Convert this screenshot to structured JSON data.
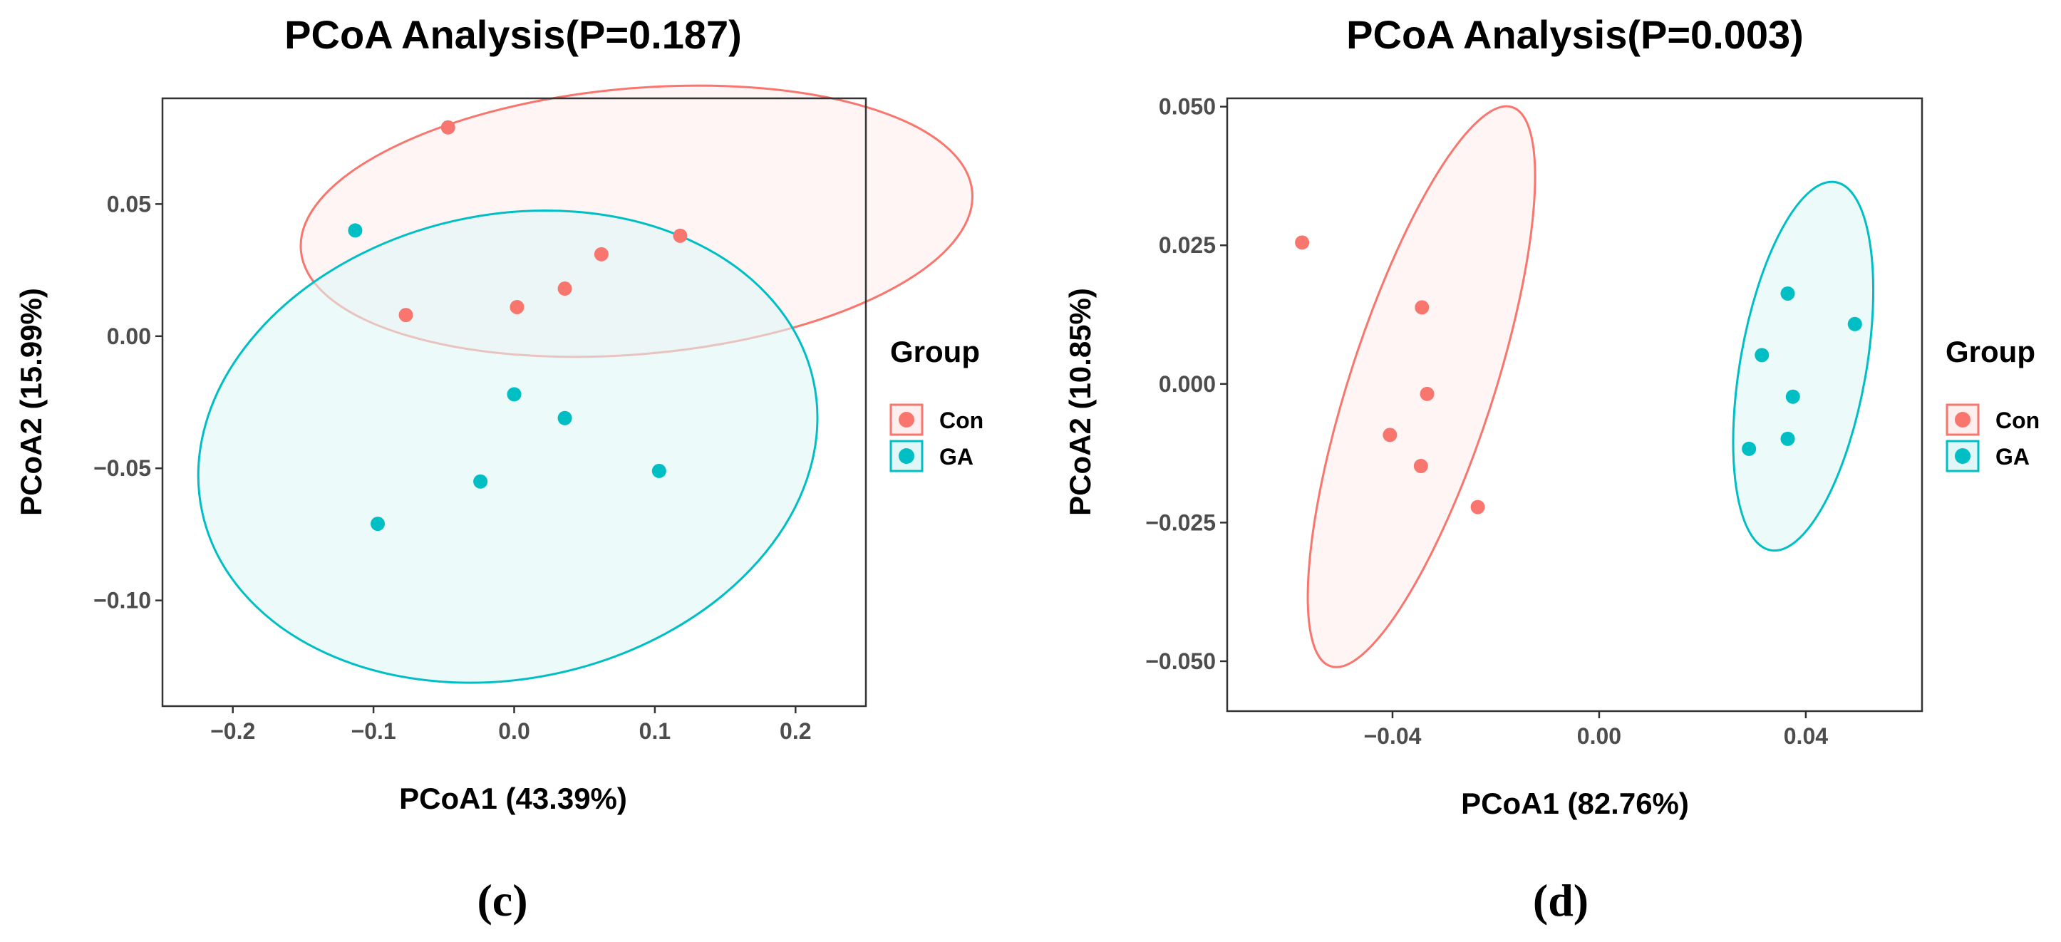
{
  "chart_data": [
    {
      "type": "scatter",
      "title": "PCoA Analysis(P=0.187)",
      "xlabel": "PCoA1 (43.39%)",
      "ylabel": "PCoA2 (15.99%)",
      "xlim": [
        -0.25,
        0.25
      ],
      "ylim": [
        -0.14,
        0.09
      ],
      "xticks": [
        -0.2,
        -0.1,
        0.0,
        0.1,
        0.2
      ],
      "xtick_labels": [
        "−0.2",
        "−0.1",
        "0.0",
        "0.1",
        "0.2"
      ],
      "yticks": [
        0.05,
        0.0,
        -0.05,
        -0.1
      ],
      "ytick_labels": [
        "0.05",
        "0.00",
        "−0.05",
        "−0.10"
      ],
      "grid": false,
      "legend": {
        "title": "Group",
        "placement": "right",
        "entries": [
          "Con",
          "GA"
        ]
      },
      "panel_label": "(c)",
      "series": [
        {
          "name": "Con",
          "color": "#F8766D",
          "x": [
            -0.047,
            0.118,
            0.062,
            -0.077,
            0.002,
            0.036
          ],
          "y": [
            0.079,
            0.038,
            0.031,
            0.008,
            0.011,
            0.018
          ],
          "ellipse": {
            "cx": 0.087,
            "cy": 0.0435,
            "rx": 0.2395,
            "ry": 0.0503,
            "angle_deg": -5
          }
        },
        {
          "name": "GA",
          "color": "#00BFC4",
          "x": [
            -0.113,
            0.0,
            0.036,
            0.103,
            -0.024,
            -0.097
          ],
          "y": [
            0.04,
            -0.022,
            -0.031,
            -0.051,
            -0.055,
            -0.071
          ],
          "ellipse": {
            "cx": -0.0045,
            "cy": -0.0418,
            "rx": 0.2222,
            "ry": 0.0878,
            "angle_deg": -12
          }
        }
      ]
    },
    {
      "type": "scatter",
      "title": "PCoA Analysis(P=0.003)",
      "xlabel": "PCoA1 (82.76%)",
      "ylabel": "PCoA2 (10.85%)",
      "xlim": [
        -0.072,
        0.0625
      ],
      "ylim": [
        -0.059,
        0.0515
      ],
      "xticks": [
        -0.04,
        0.0,
        0.04
      ],
      "xtick_labels": [
        "−0.04",
        "0.00",
        "0.04"
      ],
      "yticks": [
        0.05,
        0.025,
        0.0,
        -0.025,
        -0.05
      ],
      "ytick_labels": [
        "0.050",
        "0.025",
        "0.000",
        "−0.025",
        "−0.050"
      ],
      "grid": false,
      "legend": {
        "title": "Group",
        "placement": "right",
        "entries": [
          "Con",
          "GA"
        ]
      },
      "panel_label": "(d)",
      "series": [
        {
          "name": "Con",
          "color": "#F8766D",
          "x": [
            -0.0575,
            -0.0343,
            -0.0333,
            -0.0405,
            -0.0345,
            -0.0235
          ],
          "y": [
            0.0255,
            0.0138,
            -0.0018,
            -0.0092,
            -0.0148,
            -0.0222
          ],
          "ellipse": {
            "cx": -0.0344,
            "cy": -0.0005,
            "rx": 0.0139,
            "ry": 0.053,
            "angle_deg": 18
          }
        },
        {
          "name": "GA",
          "color": "#00BFC4",
          "x": [
            0.0365,
            0.0495,
            0.0315,
            0.0375,
            0.0365,
            0.029
          ],
          "y": [
            0.0163,
            0.0108,
            0.0052,
            -0.0023,
            -0.0099,
            -0.0117
          ],
          "ellipse": {
            "cx": 0.0395,
            "cy": 0.0032,
            "rx": 0.0122,
            "ry": 0.0337,
            "angle_deg": 10
          }
        }
      ]
    }
  ]
}
